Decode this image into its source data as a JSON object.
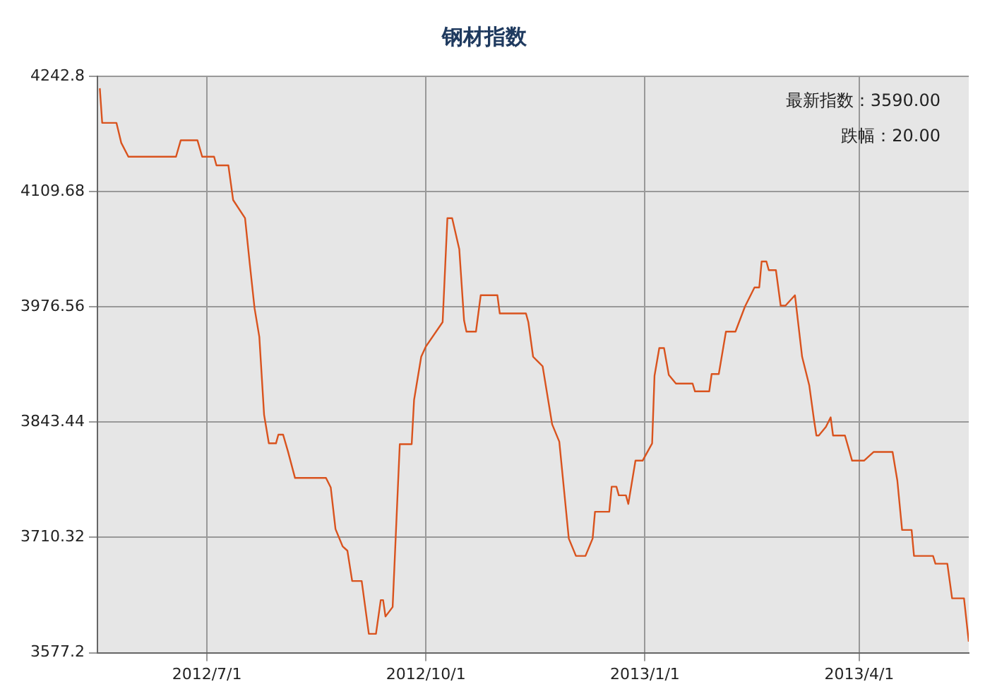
{
  "chart_data": {
    "type": "line",
    "title": "钢材指数",
    "x": [
      "2012-05-17",
      "2012-05-18",
      "2012-05-24",
      "2012-05-26",
      "2012-05-29",
      "2012-06-18",
      "2012-06-20",
      "2012-06-27",
      "2012-06-29",
      "2012-07-04",
      "2012-07-05",
      "2012-07-10",
      "2012-07-12",
      "2012-07-17",
      "2012-07-19",
      "2012-07-21",
      "2012-07-23",
      "2012-07-25",
      "2012-07-27",
      "2012-07-30",
      "2012-07-31",
      "2012-08-02",
      "2012-08-04",
      "2012-08-07",
      "2012-08-20",
      "2012-08-22",
      "2012-08-24",
      "2012-08-27",
      "2012-08-29",
      "2012-08-31",
      "2012-09-04",
      "2012-09-07",
      "2012-09-10",
      "2012-09-12",
      "2012-09-13",
      "2012-09-14",
      "2012-09-17",
      "2012-09-20",
      "2012-09-25",
      "2012-09-26",
      "2012-09-29",
      "2012-10-01",
      "2012-10-08",
      "2012-10-10",
      "2012-10-12",
      "2012-10-15",
      "2012-10-17",
      "2012-10-18",
      "2012-10-22",
      "2012-10-24",
      "2012-10-31",
      "2012-11-01",
      "2012-11-12",
      "2012-11-13",
      "2012-11-15",
      "2012-11-19",
      "2012-11-23",
      "2012-11-26",
      "2012-11-30",
      "2012-12-03",
      "2012-12-07",
      "2012-12-10",
      "2012-12-11",
      "2012-12-17",
      "2012-12-18",
      "2012-12-20",
      "2012-12-21",
      "2012-12-24",
      "2012-12-25",
      "2012-12-28",
      "2012-12-31",
      "2013-01-04",
      "2013-01-05",
      "2013-01-07",
      "2013-01-09",
      "2013-01-11",
      "2013-01-14",
      "2013-01-21",
      "2013-01-22",
      "2013-01-28",
      "2013-01-29",
      "2013-02-01",
      "2013-02-04",
      "2013-02-08",
      "2013-02-12",
      "2013-02-16",
      "2013-02-18",
      "2013-02-19",
      "2013-02-21",
      "2013-02-22",
      "2013-02-25",
      "2013-02-27",
      "2013-03-01",
      "2013-03-05",
      "2013-03-08",
      "2013-03-11",
      "2013-03-13",
      "2013-03-14",
      "2013-03-15",
      "2013-03-18",
      "2013-03-20",
      "2013-03-21",
      "2013-03-26",
      "2013-03-29",
      "2013-04-03",
      "2013-04-07",
      "2013-04-15",
      "2013-04-17",
      "2013-04-19",
      "2013-04-23",
      "2013-04-24",
      "2013-05-02",
      "2013-05-03",
      "2013-05-08",
      "2013-05-10",
      "2013-05-15",
      "2013-05-17"
    ],
    "series": [
      {
        "color": "#d9531e",
        "values": [
          4229,
          4189,
          4189,
          4166,
          4150,
          4150,
          4169,
          4169,
          4150,
          4150,
          4140,
          4140,
          4100,
          4079,
          4026,
          3975,
          3942,
          3852,
          3819,
          3819,
          3829,
          3829,
          3810,
          3779,
          3779,
          3768,
          3720,
          3700,
          3695,
          3660,
          3660,
          3599,
          3599,
          3638,
          3638,
          3619,
          3630,
          3818,
          3818,
          3869,
          3919,
          3931,
          3959,
          4079,
          4079,
          4043,
          3961,
          3948,
          3948,
          3990,
          3990,
          3969,
          3969,
          3959,
          3919,
          3908,
          3841,
          3821,
          3709,
          3689,
          3689,
          3709,
          3740,
          3740,
          3769,
          3769,
          3759,
          3759,
          3749,
          3799,
          3799,
          3819,
          3897,
          3929,
          3929,
          3898,
          3888,
          3888,
          3879,
          3879,
          3899,
          3899,
          3948,
          3948,
          3977,
          3999,
          3999,
          4029,
          4029,
          4019,
          4019,
          3978,
          3978,
          3990,
          3919,
          3886,
          3846,
          3828,
          3828,
          3838,
          3849,
          3828,
          3828,
          3799,
          3799,
          3809,
          3809,
          3776,
          3719,
          3719,
          3689,
          3689,
          3680,
          3680,
          3640,
          3640,
          3590
        ]
      }
    ],
    "xlim": [
      "2012-05-16",
      "2013-05-17"
    ],
    "xticks": [
      {
        "value": "2012-07-01",
        "label": "2012/7/1"
      },
      {
        "value": "2012-10-01",
        "label": "2012/10/1"
      },
      {
        "value": "2013-01-01",
        "label": "2013/1/1"
      },
      {
        "value": "2013-04-01",
        "label": "2013/4/1"
      }
    ],
    "ylim": [
      3577.2,
      4242.8
    ],
    "yticks": [
      3577.2,
      3710.32,
      3843.44,
      3976.56,
      4109.68,
      4242.8
    ],
    "grid": true,
    "legend": false,
    "marker": "none",
    "line_style": "solid",
    "annotations": [
      "最新指数：3590.00",
      "跌幅：20.00"
    ]
  }
}
